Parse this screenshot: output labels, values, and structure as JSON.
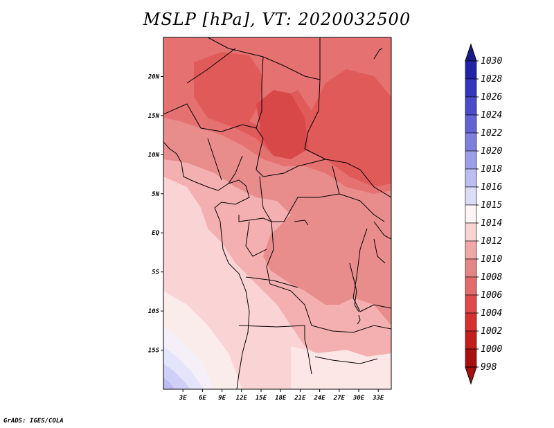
{
  "title": "MSLP [hPa], VT: 2020032500",
  "credit": "GrADS: IGES/COLA",
  "map": {
    "lon_range_deg": [
      0,
      35
    ],
    "lat_range_deg": [
      -20,
      25
    ],
    "lon_ticks": [
      "3E",
      "6E",
      "9E",
      "12E",
      "15E",
      "18E",
      "21E",
      "24E",
      "27E",
      "30E",
      "33E"
    ],
    "lat_ticks": [
      "20N",
      "15N",
      "10N",
      "5N",
      "EQ",
      "5S",
      "10S",
      "15S"
    ]
  },
  "colorbar": {
    "levels": [
      "1030",
      "1028",
      "1026",
      "1024",
      "1022",
      "1020",
      "1018",
      "1016",
      "1015",
      "1014",
      "1012",
      "1010",
      "1008",
      "1006",
      "1004",
      "1002",
      "1000",
      "998"
    ],
    "colors": [
      "#1a1a8c",
      "#2323a8",
      "#3535bd",
      "#4a4acb",
      "#6363d6",
      "#7f7fe0",
      "#9d9de9",
      "#bdbdf1",
      "#dcdcf7",
      "#fbf5f5",
      "#fad4d4",
      "#f2a7a7",
      "#e68585",
      "#e46b6b",
      "#df4b4b",
      "#d63030",
      "#c41d1d",
      "#a81010"
    ]
  }
}
